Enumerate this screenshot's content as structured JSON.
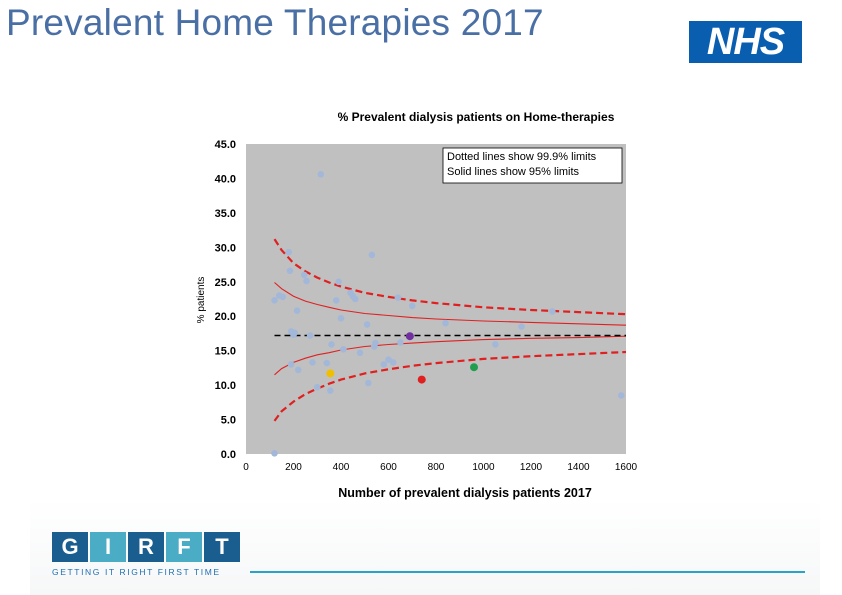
{
  "title": "Prevalent Home Therapies 2017",
  "nhs_logo": "NHS",
  "girft": {
    "letters": [
      "G",
      "I",
      "R",
      "F",
      "T"
    ],
    "colors": [
      "#1a5e8f",
      "#4bacc6",
      "#1a5e8f",
      "#4bacc6",
      "#1a5e8f"
    ],
    "tagline": "GETTING IT RIGHT FIRST TIME"
  },
  "chart_data": {
    "type": "scatter",
    "title": "% Prevalent dialysis patients on Home-therapies",
    "xlabel": "Number of prevalent dialysis patients 2017",
    "ylabel": "% patients",
    "xlim": [
      0,
      1600
    ],
    "ylim": [
      0,
      45
    ],
    "xticks": [
      "0",
      "200",
      "400",
      "600",
      "800",
      "1000",
      "1200",
      "1400",
      "1600"
    ],
    "yticks": [
      "0.0",
      "5.0",
      "10.0",
      "15.0",
      "20.0",
      "25.0",
      "30.0",
      "35.0",
      "40.0",
      "45.0"
    ],
    "grid": false,
    "background": "#c0c0c0",
    "legend_note": [
      "Dotted lines show 99.9% limits",
      "Solid lines show 95% limits"
    ],
    "mean": 17.2,
    "colors": {
      "points": "#a3b8d8",
      "limits": "#e02020",
      "mean": "#000000",
      "highlight_purple": "#7030a0",
      "highlight_yellow": "#f0c000",
      "highlight_red": "#e02020",
      "highlight_green": "#1f9e4f"
    },
    "limits": {
      "x": [
        120,
        150,
        200,
        250,
        300,
        350,
        400,
        500,
        600,
        700,
        800,
        1000,
        1200,
        1400,
        1600
      ],
      "upper_999": [
        31.2,
        29.6,
        27.7,
        26.5,
        25.6,
        24.9,
        24.3,
        23.4,
        22.8,
        22.3,
        21.9,
        21.3,
        20.9,
        20.6,
        20.3
      ],
      "upper_95": [
        24.9,
        24.0,
        22.9,
        22.2,
        21.7,
        21.3,
        20.9,
        20.4,
        20.1,
        19.8,
        19.6,
        19.3,
        19.1,
        18.9,
        18.7
      ],
      "lower_95": [
        11.5,
        12.4,
        13.3,
        13.9,
        14.4,
        14.7,
        15.1,
        15.6,
        15.9,
        16.1,
        16.3,
        16.6,
        16.8,
        16.9,
        17.1
      ],
      "lower_999": [
        4.8,
        6.2,
        7.6,
        8.7,
        9.5,
        10.2,
        10.8,
        11.7,
        12.3,
        12.8,
        13.2,
        13.8,
        14.2,
        14.5,
        14.8
      ]
    },
    "points": [
      {
        "x": 120,
        "y": 22.3
      },
      {
        "x": 140,
        "y": 23.0
      },
      {
        "x": 155,
        "y": 22.8
      },
      {
        "x": 180,
        "y": 29.3
      },
      {
        "x": 185,
        "y": 26.6
      },
      {
        "x": 190,
        "y": 17.8
      },
      {
        "x": 200,
        "y": 17.3
      },
      {
        "x": 205,
        "y": 17.6
      },
      {
        "x": 215,
        "y": 20.8
      },
      {
        "x": 220,
        "y": 12.2
      },
      {
        "x": 245,
        "y": 26.0
      },
      {
        "x": 255,
        "y": 25.1
      },
      {
        "x": 270,
        "y": 17.2
      },
      {
        "x": 280,
        "y": 13.3
      },
      {
        "x": 300,
        "y": 9.7
      },
      {
        "x": 315,
        "y": 40.6
      },
      {
        "x": 340,
        "y": 13.2
      },
      {
        "x": 355,
        "y": 9.2
      },
      {
        "x": 360,
        "y": 15.9
      },
      {
        "x": 380,
        "y": 22.3
      },
      {
        "x": 390,
        "y": 25.0
      },
      {
        "x": 400,
        "y": 19.7
      },
      {
        "x": 410,
        "y": 15.2
      },
      {
        "x": 440,
        "y": 23.4
      },
      {
        "x": 450,
        "y": 22.9
      },
      {
        "x": 460,
        "y": 22.5
      },
      {
        "x": 480,
        "y": 14.7
      },
      {
        "x": 510,
        "y": 18.8
      },
      {
        "x": 515,
        "y": 10.3
      },
      {
        "x": 530,
        "y": 28.9
      },
      {
        "x": 540,
        "y": 15.6
      },
      {
        "x": 545,
        "y": 16.1
      },
      {
        "x": 580,
        "y": 13.0
      },
      {
        "x": 600,
        "y": 13.7
      },
      {
        "x": 620,
        "y": 13.3
      },
      {
        "x": 640,
        "y": 22.7
      },
      {
        "x": 650,
        "y": 16.2
      },
      {
        "x": 700,
        "y": 21.5
      },
      {
        "x": 840,
        "y": 19.0
      },
      {
        "x": 1050,
        "y": 15.9
      },
      {
        "x": 1160,
        "y": 18.5
      },
      {
        "x": 1290,
        "y": 20.7
      },
      {
        "x": 1580,
        "y": 8.5
      },
      {
        "x": 120,
        "y": 0.1
      },
      {
        "x": 190,
        "y": 13.0
      }
    ],
    "highlights": [
      {
        "x": 690,
        "y": 17.1,
        "color": "#7030a0"
      },
      {
        "x": 355,
        "y": 11.7,
        "color": "#f0c000"
      },
      {
        "x": 740,
        "y": 10.8,
        "color": "#e02020"
      },
      {
        "x": 960,
        "y": 12.6,
        "color": "#1f9e4f"
      }
    ]
  }
}
